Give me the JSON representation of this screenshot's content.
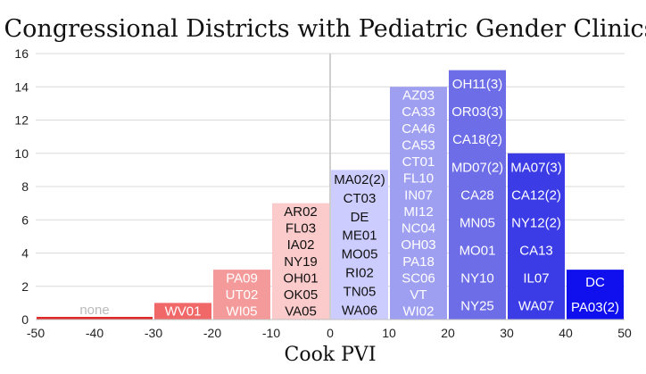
{
  "chart_data": {
    "type": "bar",
    "title": "Congressional Districts with Pediatric Gender Clinics",
    "xlabel": "Cook PVI",
    "ylabel": "",
    "xlim": [
      -50,
      50
    ],
    "ylim": [
      0,
      16
    ],
    "x_ticks": [
      "-50",
      "-40",
      "-30",
      "-20",
      "-10",
      "0",
      "10",
      "20",
      "30",
      "40",
      "50"
    ],
    "y_ticks": [
      "0",
      "2",
      "4",
      "6",
      "8",
      "10",
      "12",
      "14",
      "16"
    ],
    "grid": "horizontal",
    "reference_line_x": 0,
    "bins": [
      {
        "x0": -50,
        "x1": -30,
        "value": 0,
        "labels": [
          "none"
        ],
        "color": "#e02828",
        "label_color": "#bbbbbb"
      },
      {
        "x0": -30,
        "x1": -20,
        "value": 1,
        "labels": [
          "WV01"
        ],
        "color": "#f06868",
        "label_color": "#ffffff"
      },
      {
        "x0": -20,
        "x1": -10,
        "value": 3,
        "labels": [
          "PA09",
          "UT02",
          "WI05"
        ],
        "color": "#f59a9a",
        "label_color": "#ffffff"
      },
      {
        "x0": -10,
        "x1": 0,
        "value": 7,
        "labels": [
          "AR02",
          "FL03",
          "IA02",
          "NY19",
          "OH01",
          "OK05",
          "VA05"
        ],
        "color": "#fbcaca",
        "label_color": "#111111"
      },
      {
        "x0": 0,
        "x1": 10,
        "value": 9,
        "labels": [
          "MA02(2)",
          "CT03",
          "DE",
          "ME01",
          "MO05",
          "RI02",
          "TN05",
          "WA06"
        ],
        "color": "#ccccff",
        "label_color": "#111111"
      },
      {
        "x0": 10,
        "x1": 20,
        "value": 14,
        "labels": [
          "AZ03",
          "CA33",
          "CA46",
          "CA53",
          "CT01",
          "FL10",
          "IN07",
          "MI12",
          "NC04",
          "OH03",
          "PA18",
          "SC06",
          "VT",
          "WI02"
        ],
        "color": "#9f9ff2",
        "label_color": "#ffffff"
      },
      {
        "x0": 20,
        "x1": 30,
        "value": 15,
        "labels": [
          "OH11(3)",
          "OR03(3)",
          "CA18(2)",
          "MD07(2)",
          "CA28",
          "MN05",
          "MO01",
          "NY10",
          "NY25"
        ],
        "color": "#6d6de8",
        "label_color": "#ffffff"
      },
      {
        "x0": 30,
        "x1": 40,
        "value": 10,
        "labels": [
          "MA07(3)",
          "CA12(2)",
          "NY12(2)",
          "CA13",
          "IL07",
          "WA07"
        ],
        "color": "#3c3ce6",
        "label_color": "#ffffff"
      },
      {
        "x0": 40,
        "x1": 50,
        "value": 3,
        "labels": [
          "DC",
          "PA03(2)"
        ],
        "color": "#1010ee",
        "label_color": "#ffffff"
      }
    ]
  }
}
